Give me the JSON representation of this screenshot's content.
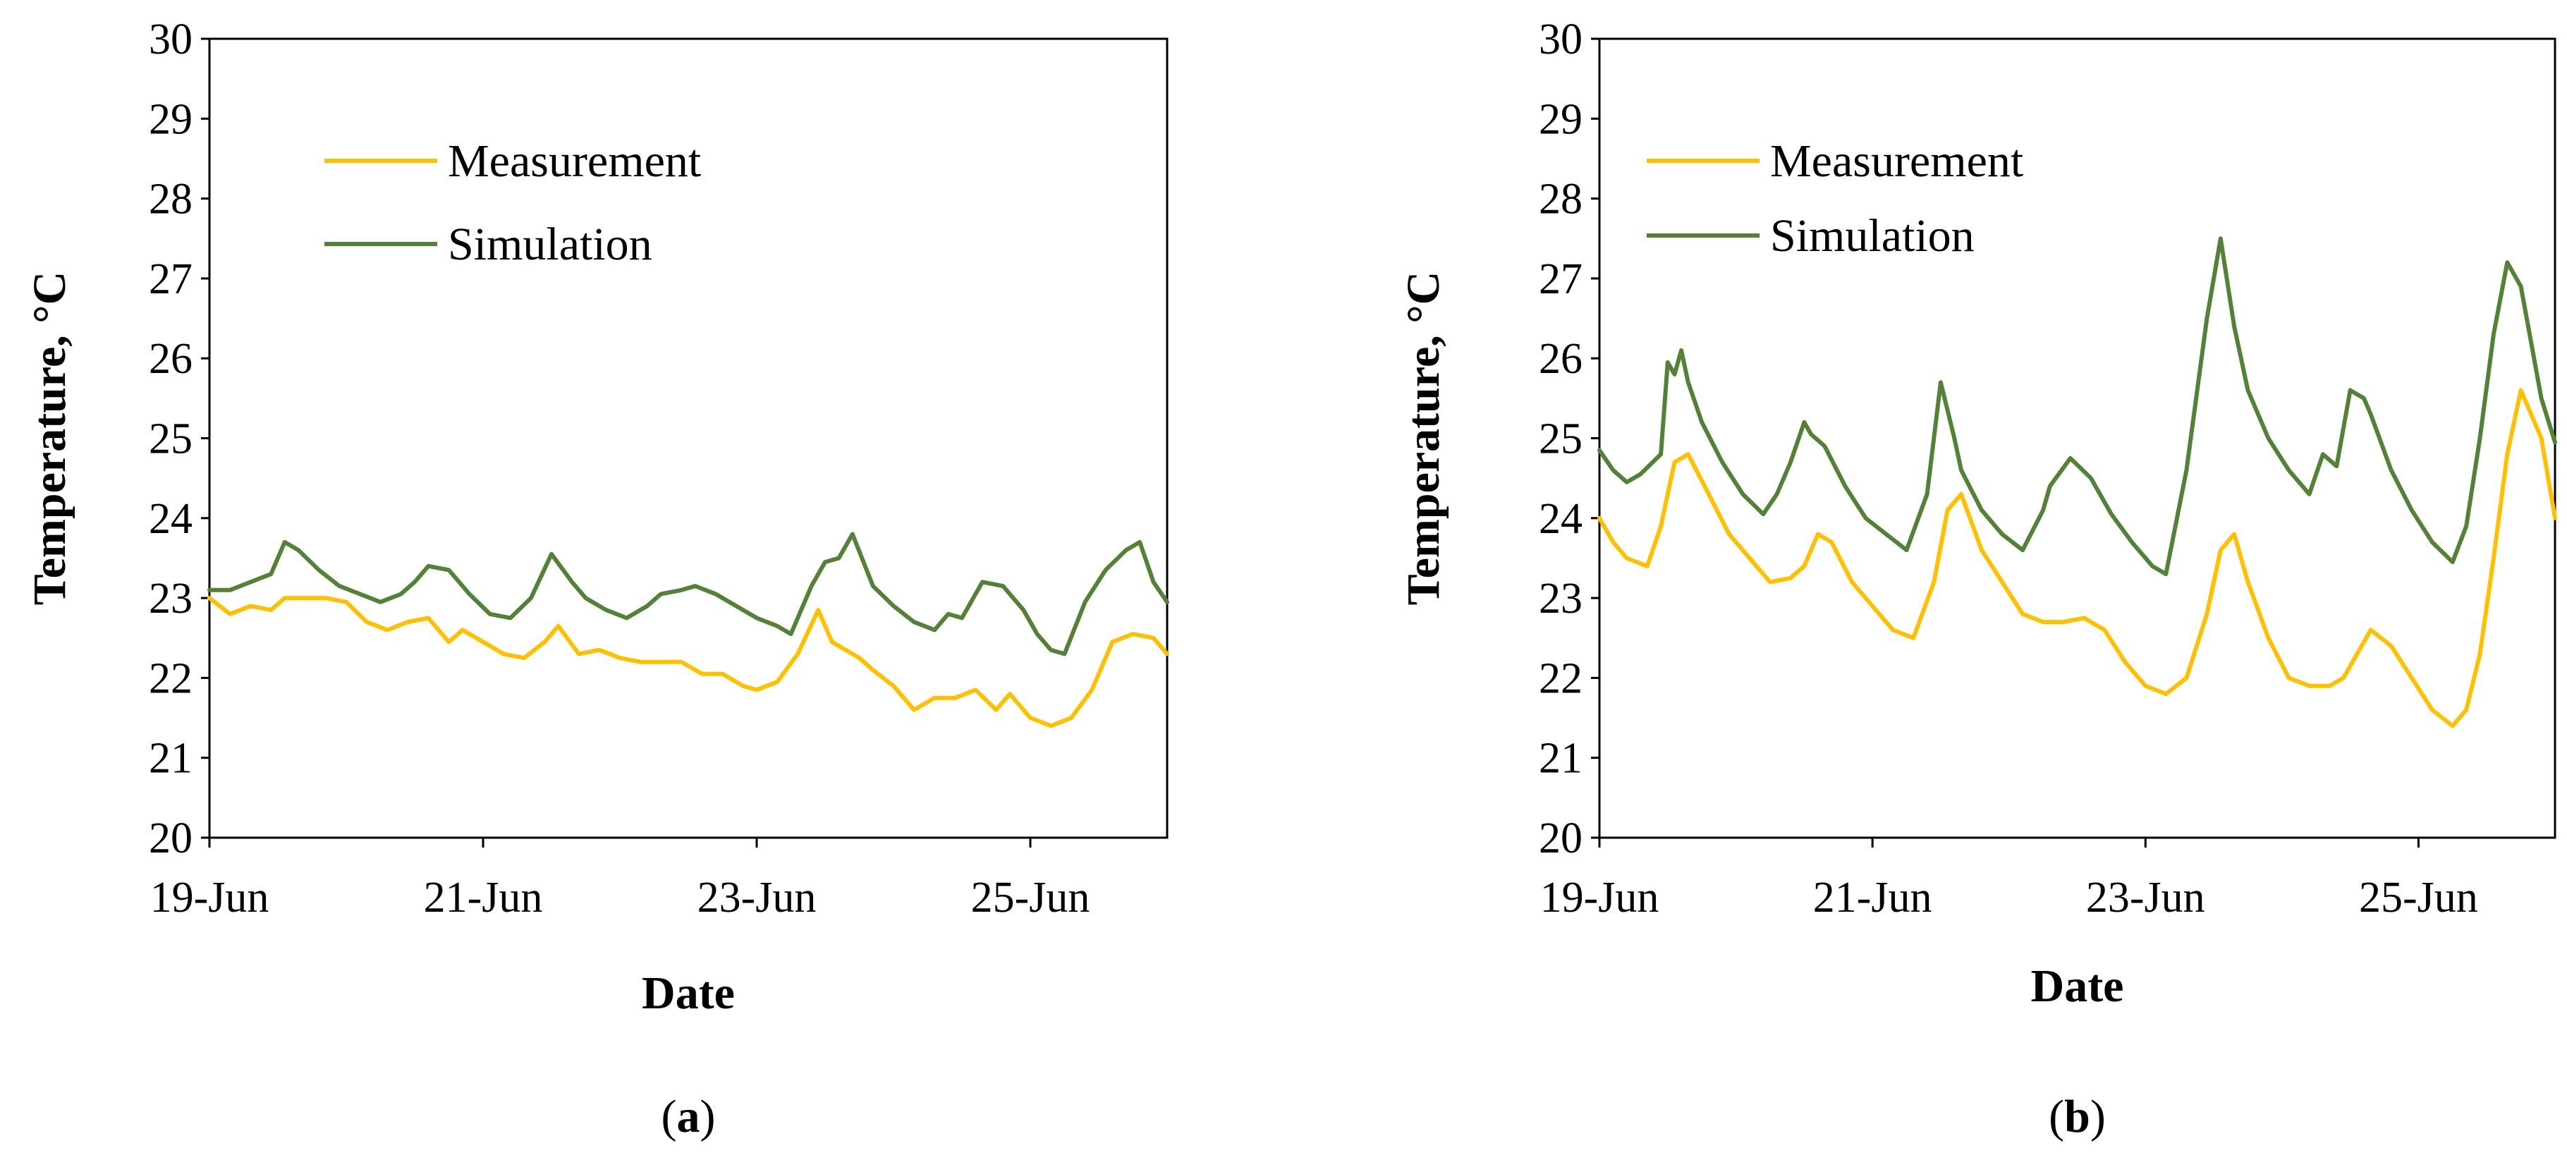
{
  "chart_data": [
    {
      "type": "line",
      "panel_label": "a",
      "xlabel": "Date",
      "ylabel": "Temperature, °C",
      "ylim": [
        20,
        30
      ],
      "yticks": [
        20,
        21,
        22,
        23,
        24,
        25,
        26,
        27,
        28,
        29,
        30
      ],
      "xlim": [
        0,
        7
      ],
      "xtick_positions": [
        0,
        2,
        4,
        6
      ],
      "xtick_labels": [
        "19-Jun",
        "21-Jun",
        "23-Jun",
        "25-Jun"
      ],
      "grid": false,
      "legend_placement": "top-left",
      "series": [
        {
          "name": "Measurement",
          "color": "#FFC000",
          "x": [
            0,
            0.15,
            0.3,
            0.45,
            0.55,
            0.7,
            0.85,
            1.0,
            1.15,
            1.3,
            1.45,
            1.6,
            1.75,
            1.85,
            2.0,
            2.15,
            2.3,
            2.45,
            2.55,
            2.7,
            2.85,
            3.0,
            3.15,
            3.3,
            3.45,
            3.6,
            3.75,
            3.9,
            4.0,
            4.15,
            4.3,
            4.45,
            4.55,
            4.65,
            4.75,
            4.85,
            5.0,
            5.15,
            5.3,
            5.45,
            5.6,
            5.75,
            5.85,
            6.0,
            6.15,
            6.3,
            6.45,
            6.6,
            6.75,
            6.9,
            7.0
          ],
          "y": [
            23.0,
            22.8,
            22.9,
            22.85,
            23.0,
            23.0,
            23.0,
            22.95,
            22.7,
            22.6,
            22.7,
            22.75,
            22.45,
            22.6,
            22.45,
            22.3,
            22.25,
            22.45,
            22.65,
            22.3,
            22.35,
            22.25,
            22.2,
            22.2,
            22.2,
            22.05,
            22.05,
            21.9,
            21.85,
            21.95,
            22.3,
            22.85,
            22.45,
            22.35,
            22.25,
            22.1,
            21.9,
            21.6,
            21.75,
            21.75,
            21.85,
            21.6,
            21.8,
            21.5,
            21.4,
            21.5,
            21.85,
            22.45,
            22.55,
            22.5,
            22.3
          ]
        },
        {
          "name": "Simulation",
          "color": "#538135",
          "x": [
            0,
            0.15,
            0.3,
            0.45,
            0.55,
            0.65,
            0.8,
            0.95,
            1.1,
            1.25,
            1.4,
            1.5,
            1.6,
            1.75,
            1.9,
            2.05,
            2.2,
            2.35,
            2.5,
            2.65,
            2.75,
            2.9,
            3.05,
            3.2,
            3.3,
            3.45,
            3.55,
            3.7,
            3.85,
            4.0,
            4.15,
            4.25,
            4.4,
            4.5,
            4.6,
            4.7,
            4.85,
            5.0,
            5.15,
            5.3,
            5.4,
            5.5,
            5.65,
            5.8,
            5.95,
            6.05,
            6.15,
            6.25,
            6.4,
            6.55,
            6.7,
            6.8,
            6.9,
            7.0
          ],
          "y": [
            23.1,
            23.1,
            23.2,
            23.3,
            23.7,
            23.6,
            23.35,
            23.15,
            23.05,
            22.95,
            23.05,
            23.2,
            23.4,
            23.35,
            23.05,
            22.8,
            22.75,
            23.0,
            23.55,
            23.2,
            23.0,
            22.85,
            22.75,
            22.9,
            23.05,
            23.1,
            23.15,
            23.05,
            22.9,
            22.75,
            22.65,
            22.55,
            23.15,
            23.45,
            23.5,
            23.8,
            23.15,
            22.9,
            22.7,
            22.6,
            22.8,
            22.75,
            23.2,
            23.15,
            22.85,
            22.55,
            22.35,
            22.3,
            22.95,
            23.35,
            23.6,
            23.7,
            23.2,
            22.95
          ]
        }
      ]
    },
    {
      "type": "line",
      "panel_label": "b",
      "xlabel": "Date",
      "ylabel": "Temperature, °C",
      "ylim": [
        20,
        30
      ],
      "yticks": [
        20,
        21,
        22,
        23,
        24,
        25,
        26,
        27,
        28,
        29,
        30
      ],
      "xlim": [
        0,
        7
      ],
      "xtick_positions": [
        0,
        2,
        4,
        6
      ],
      "xtick_labels": [
        "19-Jun",
        "21-Jun",
        "23-Jun",
        "25-Jun"
      ],
      "grid": false,
      "legend_placement": "top-left",
      "series": [
        {
          "name": "Measurement",
          "color": "#FFC000",
          "x": [
            0,
            0.1,
            0.2,
            0.35,
            0.45,
            0.55,
            0.65,
            0.8,
            0.95,
            1.1,
            1.25,
            1.4,
            1.5,
            1.6,
            1.7,
            1.85,
            2.0,
            2.15,
            2.3,
            2.45,
            2.55,
            2.65,
            2.8,
            2.95,
            3.1,
            3.25,
            3.4,
            3.55,
            3.7,
            3.85,
            4.0,
            4.15,
            4.3,
            4.45,
            4.55,
            4.65,
            4.75,
            4.9,
            5.05,
            5.2,
            5.35,
            5.45,
            5.55,
            5.65,
            5.8,
            5.95,
            6.1,
            6.25,
            6.35,
            6.45,
            6.55,
            6.65,
            6.75,
            6.9,
            7.0
          ],
          "y": [
            24.0,
            23.7,
            23.5,
            23.4,
            23.9,
            24.7,
            24.8,
            24.3,
            23.8,
            23.5,
            23.2,
            23.25,
            23.4,
            23.8,
            23.7,
            23.2,
            22.9,
            22.6,
            22.5,
            23.2,
            24.1,
            24.3,
            23.6,
            23.2,
            22.8,
            22.7,
            22.7,
            22.75,
            22.6,
            22.2,
            21.9,
            21.8,
            22.0,
            22.8,
            23.6,
            23.8,
            23.2,
            22.5,
            22.0,
            21.9,
            21.9,
            22.0,
            22.3,
            22.6,
            22.4,
            22.0,
            21.6,
            21.4,
            21.6,
            22.3,
            23.5,
            24.8,
            25.6,
            25.0,
            24.0
          ]
        },
        {
          "name": "Simulation",
          "color": "#538135",
          "x": [
            0,
            0.1,
            0.2,
            0.3,
            0.45,
            0.5,
            0.55,
            0.6,
            0.65,
            0.75,
            0.9,
            1.05,
            1.2,
            1.3,
            1.4,
            1.5,
            1.55,
            1.65,
            1.8,
            1.95,
            2.1,
            2.25,
            2.4,
            2.5,
            2.6,
            2.65,
            2.8,
            2.95,
            3.1,
            3.25,
            3.3,
            3.45,
            3.6,
            3.75,
            3.9,
            4.05,
            4.15,
            4.3,
            4.45,
            4.55,
            4.65,
            4.75,
            4.9,
            5.05,
            5.2,
            5.3,
            5.4,
            5.5,
            5.6,
            5.65,
            5.8,
            5.95,
            6.1,
            6.25,
            6.35,
            6.45,
            6.55,
            6.65,
            6.75,
            6.9,
            7.0
          ],
          "y": [
            24.85,
            24.6,
            24.45,
            24.55,
            24.8,
            25.95,
            25.8,
            26.1,
            25.7,
            25.2,
            24.7,
            24.3,
            24.05,
            24.3,
            24.7,
            25.2,
            25.05,
            24.9,
            24.4,
            24.0,
            23.8,
            23.6,
            24.3,
            25.7,
            25.0,
            24.6,
            24.1,
            23.8,
            23.6,
            24.1,
            24.4,
            24.75,
            24.5,
            24.05,
            23.7,
            23.4,
            23.3,
            24.6,
            26.5,
            27.5,
            26.4,
            25.6,
            25.0,
            24.6,
            24.3,
            24.8,
            24.65,
            25.6,
            25.5,
            25.3,
            24.6,
            24.1,
            23.7,
            23.45,
            23.9,
            25.0,
            26.3,
            27.2,
            26.9,
            25.5,
            24.95
          ]
        }
      ]
    }
  ]
}
